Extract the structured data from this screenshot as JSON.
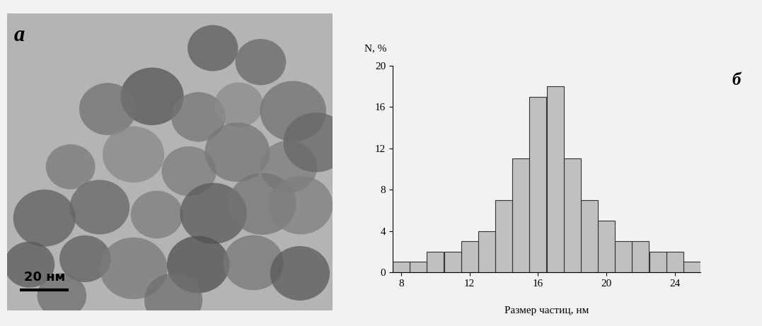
{
  "image_panel": {
    "label": "a",
    "scale_bar_label": "20 нм"
  },
  "chart_data": {
    "type": "histogram",
    "annotation": "б",
    "x_label": "Размер частиц, нм",
    "y_label": "N, %",
    "bins": [
      7.5,
      8.5,
      9.5,
      10.5,
      11.5,
      12.5,
      13.5,
      14.5,
      15.5,
      16.5,
      17.5,
      18.5,
      19.5,
      20.5,
      21.5,
      22.5,
      23.5,
      24.5,
      25.5
    ],
    "values": [
      1,
      1,
      2,
      2,
      3,
      4,
      7,
      11,
      17,
      18,
      11,
      7,
      5,
      3,
      3,
      2,
      2,
      1
    ],
    "color": "#c0c0c0",
    "xlim": [
      7.5,
      25.5
    ],
    "xticks": [
      8,
      12,
      16,
      20,
      24
    ],
    "ylim": [
      0,
      20
    ],
    "yticks": [
      0,
      4,
      8,
      12,
      16,
      20
    ],
    "grid": false
  }
}
